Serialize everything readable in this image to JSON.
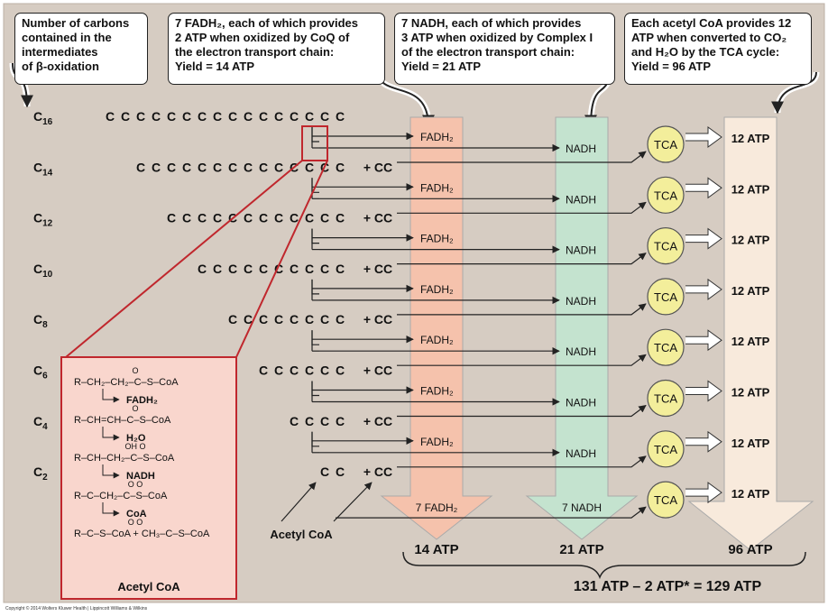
{
  "callouts": {
    "carbons": [
      "Number of carbons",
      "contained in the",
      "intermediates",
      "of β-oxidation"
    ],
    "fadh2": [
      "7 FADH₂, each of which provides",
      "2 ATP when oxidized by CoQ of",
      "the electron transport chain:",
      "Yield = 14 ATP"
    ],
    "nadh": [
      "7 NADH, each of which provides",
      "3 ATP when oxidized by Complex I",
      "of the electron transport chain:",
      "Yield =  21 ATP"
    ],
    "acetyl": [
      "Each acetyl CoA provides 12",
      "ATP when converted to CO₂",
      "and H₂O by the TCA cycle:",
      "Yield = 96 ATP"
    ]
  },
  "rows": [
    {
      "label_base": "C",
      "label_sub": "16",
      "carbons": 16,
      "acetyl": false
    },
    {
      "label_base": "C",
      "label_sub": "14",
      "carbons": 14,
      "acetyl": true
    },
    {
      "label_base": "C",
      "label_sub": "12",
      "carbons": 12,
      "acetyl": true
    },
    {
      "label_base": "C",
      "label_sub": "10",
      "carbons": 10,
      "acetyl": true
    },
    {
      "label_base": "C",
      "label_sub": "8",
      "carbons": 8,
      "acetyl": true
    },
    {
      "label_base": "C",
      "label_sub": "6",
      "carbons": 6,
      "acetyl": true
    },
    {
      "label_base": "C",
      "label_sub": "4",
      "carbons": 4,
      "acetyl": true
    },
    {
      "label_base": "C",
      "label_sub": "2",
      "carbons": 2,
      "acetyl": true
    }
  ],
  "carbon_char": "C",
  "acetyl_text": "+ CC",
  "fadh2_label": "FADH₂",
  "nadh_label": "NADH",
  "tca_label": "TCA",
  "atp_label": "12 ATP",
  "arrow_totals": {
    "fadh2": "7 FADH₂",
    "nadh": "7 NADH"
  },
  "yields": {
    "fadh2": "14 ATP",
    "nadh": "21 ATP",
    "tca": "96 ATP"
  },
  "total": "131 ATP – 2 ATP* = 129 ATP",
  "acetyl_coa_label": "Acetyl CoA",
  "inset": {
    "lines": [
      {
        "type": "mol",
        "text": "R–CH₂–CH₂–C–S–CoA",
        "top": "O"
      },
      {
        "type": "step",
        "text": "FADH₂"
      },
      {
        "type": "mol",
        "text": "R–CH=CH–C–S–CoA",
        "top": "O"
      },
      {
        "type": "step",
        "text": "H₂O"
      },
      {
        "type": "mol",
        "text": "R–CH–CH₂–C–S–CoA",
        "top": "OH            O"
      },
      {
        "type": "step",
        "text": "NADH"
      },
      {
        "type": "mol",
        "text": "R–C–CH₂–C–S–CoA",
        "top": "O             O"
      },
      {
        "type": "step",
        "text": "CoA"
      },
      {
        "type": "mol",
        "text": "R–C–S–CoA + CH₃–C–S–CoA",
        "top": "O                         O"
      }
    ],
    "footer": "Acetyl CoA"
  },
  "copyright": "Copyright © 2014 Wolters Kluwer Health | Lippincott Williams & Wilkins",
  "colors": {
    "background": "#d6ccc2",
    "fadh2_col": "#f5c2ac",
    "nadh_col": "#c4e3cf",
    "atp_col": "#f8eadc",
    "tca_fill": "#f3ee9b",
    "inset_fill": "#f9d6cd",
    "red": "#c0272d"
  }
}
